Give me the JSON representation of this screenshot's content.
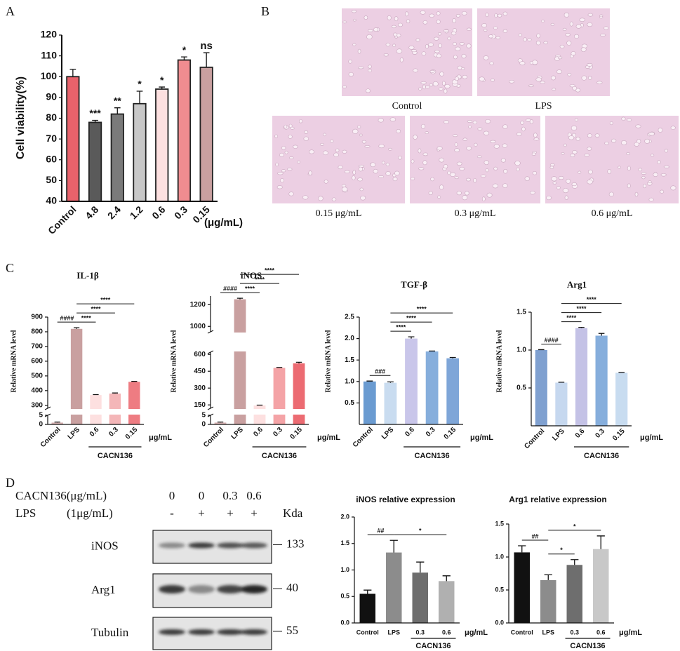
{
  "panel_labels": [
    "A",
    "B",
    "C",
    "D"
  ],
  "micrographs": [
    "Control",
    "LPS",
    "0.15 μg/mL",
    "0.3 μg/mL",
    "0.6 μg/mL"
  ],
  "blot": {
    "header_rows": [
      {
        "label": "CACN136(μg/mL)",
        "lanes": [
          "0",
          "0",
          "0.3",
          "0.6"
        ]
      },
      {
        "label": "LPS",
        "unit": "(1μg/mL)",
        "lanes": [
          "-",
          "+",
          "+",
          "+"
        ]
      }
    ],
    "kda_label": "Kda",
    "rows": [
      {
        "name": "iNOS",
        "kda": 133
      },
      {
        "name": "Arg1",
        "kda": 40
      },
      {
        "name": "Tubulin",
        "kda": 55
      }
    ]
  },
  "chart_data": [
    {
      "type": "bar",
      "ylabel": "Cell viability(%)",
      "categories": [
        "Control",
        "4.8",
        "2.4",
        "1.2",
        "0.6",
        "0.3",
        "0.15"
      ],
      "unit_label": "(μg/mL)",
      "values": [
        100,
        78,
        82,
        87,
        94,
        108,
        104.5
      ],
      "errors": [
        3.5,
        1,
        3,
        6,
        1,
        1.5,
        7
      ],
      "bar_labels": [
        null,
        "***",
        "**",
        "*",
        "*",
        "*",
        "ns"
      ],
      "colors": [
        "#e8626b",
        "#5a5a5a",
        "#7a7a7a",
        "#c8c8c8",
        "#fde0e0",
        "#f08c90",
        "#c9a0a0"
      ],
      "ylim": [
        40,
        120
      ],
      "yticks": [
        40,
        50,
        60,
        70,
        80,
        90,
        100,
        110,
        120
      ]
    },
    {
      "type": "bar",
      "title": "IL-1β",
      "ylabel": "Relative mRNA level",
      "categories": [
        "Control",
        "LPS",
        "0.6",
        "0.3",
        "0.15"
      ],
      "unit_label": "μg/mL",
      "group": {
        "label": "CACN136",
        "from": 2,
        "to": 4
      },
      "values": [
        1,
        820,
        370,
        380,
        460
      ],
      "errors": [
        0.3,
        8,
        3,
        4,
        3
      ],
      "colors": [
        "#d9b4b4",
        "#c9a0a0",
        "#fde0e0",
        "#f4b6b8",
        "#ee7c82"
      ],
      "ylim": [
        0,
        900
      ],
      "axis_breaks": [
        [
          5,
          280
        ]
      ],
      "yticks": [
        0,
        5,
        300,
        400,
        500,
        600,
        700,
        800,
        900
      ],
      "annotations": [
        {
          "text": "####",
          "from": 0,
          "to": 1
        },
        {
          "text": "****",
          "from": 1,
          "to": 2
        },
        {
          "text": "****",
          "from": 1,
          "to": 3
        },
        {
          "text": "****",
          "from": 1,
          "to": 4
        }
      ]
    },
    {
      "type": "bar",
      "title": "iNOS",
      "ylabel": "Relative mRNA level",
      "categories": [
        "Control",
        "LPS",
        "0.6",
        "0.3",
        "0.15"
      ],
      "unit_label": "μg/mL",
      "group": {
        "label": "CACN136",
        "from": 2,
        "to": 4
      },
      "values": [
        1,
        1250,
        145,
        480,
        520
      ],
      "errors": [
        0.3,
        10,
        3,
        4,
        10
      ],
      "colors": [
        "#d9b4b4",
        "#c9a0a0",
        "#fde0e0",
        "#f4a3a6",
        "#ec6b72"
      ],
      "ylim": [
        0,
        1280
      ],
      "axis_breaks": [
        [
          5,
          120
        ],
        [
          620,
          950
        ]
      ],
      "yticks": [
        0,
        5,
        150,
        300,
        450,
        600,
        1000,
        1200
      ],
      "annotations": [
        {
          "text": "####",
          "from": 0,
          "to": 1
        },
        {
          "text": "****",
          "from": 1,
          "to": 2
        },
        {
          "text": "****",
          "from": 1,
          "to": 3
        },
        {
          "text": "****",
          "from": 1,
          "to": 4
        }
      ]
    },
    {
      "type": "bar",
      "title": "TGF-β",
      "ylabel": "Relative mRNA level",
      "categories": [
        "Control",
        "LPS",
        "0.6",
        "0.3",
        "0.15"
      ],
      "unit_label": "μg/mL",
      "group": {
        "label": "CACN136",
        "from": 2,
        "to": 4
      },
      "values": [
        1.0,
        0.97,
        2.0,
        1.7,
        1.54
      ],
      "errors": [
        0.01,
        0.02,
        0.04,
        0.01,
        0.02
      ],
      "colors": [
        "#6a9bd1",
        "#c9dcf0",
        "#c9c6ea",
        "#86aedc",
        "#7fa6d8"
      ],
      "ylim": [
        0,
        2.5
      ],
      "yticks": [
        0.5,
        {
          "value": 1,
          "label": "1.0"
        },
        1.5,
        {
          "value": 2,
          "label": "2.0"
        },
        2.5
      ],
      "annotations": [
        {
          "text": "###",
          "from": 0,
          "to": 1
        },
        {
          "text": "****",
          "from": 1,
          "to": 2
        },
        {
          "text": "****",
          "from": 1,
          "to": 3
        },
        {
          "text": "****",
          "from": 1,
          "to": 4
        }
      ]
    },
    {
      "type": "bar",
      "title": "Arg1",
      "ylabel": "Relative mRNA level",
      "categories": [
        "Control",
        "LPS",
        "0.6",
        "0.3",
        "0.15"
      ],
      "unit_label": "μg/mL",
      "group": {
        "label": "CACN136",
        "from": 2,
        "to": 4
      },
      "values": [
        1.0,
        0.57,
        1.29,
        1.19,
        0.7
      ],
      "errors": [
        0.005,
        0.005,
        0.01,
        0.03,
        0.005
      ],
      "colors": [
        "#7fa0d0",
        "#c6d8ef",
        "#c4c2e6",
        "#86aedc",
        "#c8dcf0"
      ],
      "ylim": [
        0,
        1.5
      ],
      "yticks": [
        0.5,
        {
          "value": 1,
          "label": "1.0"
        },
        1.5
      ],
      "annotations": [
        {
          "text": "####",
          "from": 0,
          "to": 1
        },
        {
          "text": "****",
          "from": 1,
          "to": 2
        },
        {
          "text": "****",
          "from": 1,
          "to": 3
        },
        {
          "text": "****",
          "from": 1,
          "to": 4
        }
      ]
    },
    {
      "type": "bar",
      "title": "iNOS relative expression",
      "categories": [
        "Control",
        "LPS",
        "0.3",
        "0.6"
      ],
      "unit_label": "μg/mL",
      "group": {
        "label": "CACN136",
        "from": 2,
        "to": 3
      },
      "values": [
        0.55,
        1.33,
        0.95,
        0.79
      ],
      "errors": [
        0.07,
        0.23,
        0.2,
        0.1
      ],
      "colors": [
        "#111111",
        "#8c8c8c",
        "#6e6e6e",
        "#b0b0b0"
      ],
      "ylim": [
        0,
        2
      ],
      "yticks": [
        {
          "value": 0,
          "label": "0.0"
        },
        0.5,
        {
          "value": 1,
          "label": "1.0"
        },
        1.5,
        {
          "value": 2,
          "label": "2.0"
        }
      ],
      "annotations": [
        {
          "text": "##",
          "from": 0,
          "to": 1
        },
        {
          "text": "*",
          "from": 1,
          "to": 3
        }
      ]
    },
    {
      "type": "bar",
      "title": "Arg1 relative expression",
      "categories": [
        "Control",
        "LPS",
        "0.3",
        "0.6"
      ],
      "unit_label": "μg/mL",
      "group": {
        "label": "CACN136",
        "from": 2,
        "to": 3
      },
      "values": [
        1.07,
        0.65,
        0.88,
        1.12
      ],
      "errors": [
        0.1,
        0.08,
        0.08,
        0.2
      ],
      "colors": [
        "#111111",
        "#8c8c8c",
        "#6e6e6e",
        "#c8c8c8"
      ],
      "ylim": [
        0,
        1.5
      ],
      "yticks": [
        {
          "value": 0,
          "label": "0.0"
        },
        0.5,
        {
          "value": 1,
          "label": "1.0"
        },
        1.5
      ],
      "annotations": [
        {
          "text": "##",
          "from": 0,
          "to": 1
        },
        {
          "text": "*",
          "from": 1,
          "to": 2
        },
        {
          "text": "*",
          "from": 1,
          "to": 3
        }
      ]
    }
  ]
}
